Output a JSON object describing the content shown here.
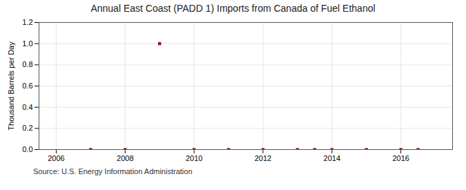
{
  "chart_data": {
    "type": "scatter",
    "title": "Annual East Coast (PADD 1) Imports from Canada of Fuel Ethanol",
    "ylabel": "Thousand Barrels per Day",
    "source": "Source: U.S. Energy Information Administration",
    "x": [
      2007,
      2008,
      2009,
      2010,
      2011,
      2012,
      2013,
      2013.5,
      2014,
      2015,
      2016,
      2016.5
    ],
    "values": [
      0.0,
      0.0,
      1.0,
      0.0,
      0.0,
      0.0,
      0.0,
      0.0,
      0.0,
      0.0,
      0.0,
      0.0
    ],
    "color": "#8B1A1A",
    "marker": "square",
    "xlim": [
      2005.5,
      2017.5
    ],
    "xticks": [
      2006,
      2008,
      2010,
      2012,
      2014,
      2016
    ],
    "ylim": [
      0.0,
      1.2
    ],
    "yticks": [
      {
        "value": 0.0,
        "label": "0.0"
      },
      0.2,
      0.4,
      0.6,
      0.8,
      {
        "value": 1.0,
        "label": "1.0"
      },
      1.2
    ],
    "grid": true
  }
}
